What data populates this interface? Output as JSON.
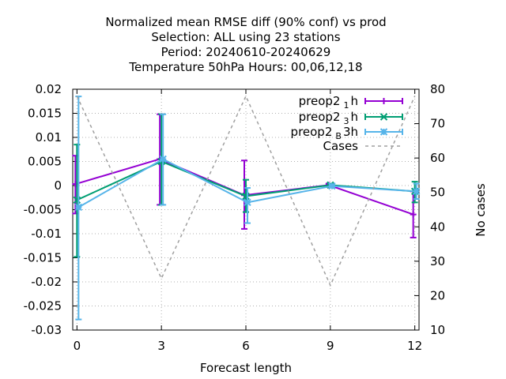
{
  "chart_data": {
    "type": "line",
    "title_lines": [
      "Normalized mean RMSE diff (90% conf) vs prod",
      "Selection: ALL using    23 stations",
      "Period: 20240610-20240629",
      "Temperature 50hPa   Hours:  00,06,12,18"
    ],
    "xlabel": "Forecast length",
    "ylabel": "",
    "y2label": "No cases",
    "xlim": [
      -0.15,
      12.15
    ],
    "ylim": [
      -0.03,
      0.02
    ],
    "y2lim": [
      10,
      80
    ],
    "xticks": [
      0,
      3,
      6,
      9,
      12
    ],
    "xtick_labels": [
      "0",
      "3",
      "6",
      "9",
      "12"
    ],
    "yticks": [
      -0.03,
      -0.025,
      -0.02,
      -0.015,
      -0.01,
      -0.005,
      0,
      0.005,
      0.01,
      0.015,
      0.02
    ],
    "ytick_labels": [
      "-0.03",
      "-0.025",
      "-0.02",
      "-0.015",
      "-0.01",
      "-0.005",
      "0",
      "0.005",
      "0.01",
      "0.015",
      "0.02"
    ],
    "y2ticks": [
      10,
      20,
      30,
      40,
      50,
      60,
      70,
      80
    ],
    "y2tick_labels": [
      "10",
      "20",
      "30",
      "40",
      "50",
      "60",
      "70",
      "80"
    ],
    "grid": true,
    "legend_position": "top-right",
    "series": [
      {
        "legend_parts": [
          "preop2",
          "1",
          "h"
        ],
        "color": "#9400d3",
        "marker": "plus",
        "axis": "y",
        "x": [
          0,
          3,
          6,
          9,
          12
        ],
        "y": [
          0.0003,
          0.0055,
          -0.002,
          0.0001,
          -0.006
        ],
        "err_low": [
          -0.0058,
          -0.004,
          -0.009,
          -0.0002,
          -0.0108
        ],
        "err_high": [
          0.0062,
          0.0148,
          0.0052,
          0.0004,
          -0.0012
        ]
      },
      {
        "legend_parts": [
          "preop2",
          "3",
          "h"
        ],
        "color": "#009e73",
        "marker": "cross",
        "axis": "y",
        "x": [
          0,
          3,
          6,
          9,
          12
        ],
        "y": [
          -0.003,
          0.005,
          -0.0022,
          0.0001,
          -0.0012
        ],
        "err_low": [
          -0.0148,
          -0.004,
          -0.0055,
          -0.0002,
          -0.0035
        ],
        "err_high": [
          0.0085,
          0.0148,
          0.0012,
          0.0004,
          0.0008
        ]
      },
      {
        "legend_parts": [
          "preop2",
          "B",
          "3h"
        ],
        "color": "#56b4e9",
        "marker": "star",
        "axis": "y",
        "x": [
          0,
          3,
          6,
          9,
          12
        ],
        "y": [
          -0.0045,
          0.0055,
          -0.0035,
          -0.0001,
          -0.0012
        ],
        "err_low": [
          -0.0278,
          -0.004,
          -0.0078,
          -0.0003,
          -0.0028
        ],
        "err_high": [
          0.0185,
          0.0148,
          -0.0005,
          0.0002,
          0.0004
        ]
      },
      {
        "name": "Cases",
        "color": "#a0a0a0",
        "dashed": true,
        "axis": "y2",
        "x": [
          0,
          3,
          6,
          9,
          12
        ],
        "y": [
          78,
          25,
          78,
          23,
          78
        ]
      }
    ]
  }
}
